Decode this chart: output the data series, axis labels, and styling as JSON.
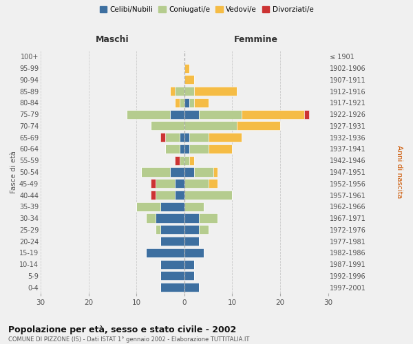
{
  "age_groups": [
    "0-4",
    "5-9",
    "10-14",
    "15-19",
    "20-24",
    "25-29",
    "30-34",
    "35-39",
    "40-44",
    "45-49",
    "50-54",
    "55-59",
    "60-64",
    "65-69",
    "70-74",
    "75-79",
    "80-84",
    "85-89",
    "90-94",
    "95-99",
    "100+"
  ],
  "birth_years": [
    "1997-2001",
    "1992-1996",
    "1987-1991",
    "1982-1986",
    "1977-1981",
    "1972-1976",
    "1967-1971",
    "1962-1966",
    "1957-1961",
    "1952-1956",
    "1947-1951",
    "1942-1946",
    "1937-1941",
    "1932-1936",
    "1927-1931",
    "1922-1926",
    "1917-1921",
    "1912-1916",
    "1907-1911",
    "1902-1906",
    "≤ 1901"
  ],
  "males": {
    "celibi": [
      5,
      5,
      5,
      8,
      5,
      5,
      6,
      5,
      2,
      2,
      3,
      0,
      1,
      1,
      0,
      3,
      0,
      0,
      0,
      0,
      0
    ],
    "coniugati": [
      0,
      0,
      0,
      0,
      0,
      1,
      2,
      5,
      4,
      4,
      6,
      1,
      3,
      3,
      7,
      9,
      1,
      2,
      0,
      0,
      0
    ],
    "vedovi": [
      0,
      0,
      0,
      0,
      0,
      0,
      0,
      0,
      0,
      0,
      0,
      0,
      0,
      0,
      0,
      0,
      1,
      1,
      0,
      0,
      0
    ],
    "divorziati": [
      0,
      0,
      0,
      0,
      0,
      0,
      0,
      0,
      1,
      1,
      0,
      1,
      0,
      1,
      0,
      0,
      0,
      0,
      0,
      0,
      0
    ]
  },
  "females": {
    "nubili": [
      3,
      2,
      2,
      4,
      3,
      3,
      3,
      0,
      0,
      0,
      2,
      0,
      1,
      1,
      0,
      3,
      1,
      0,
      0,
      0,
      0
    ],
    "coniugate": [
      0,
      0,
      0,
      0,
      0,
      2,
      4,
      4,
      10,
      5,
      4,
      1,
      4,
      4,
      11,
      9,
      1,
      2,
      0,
      0,
      0
    ],
    "vedove": [
      0,
      0,
      0,
      0,
      0,
      0,
      0,
      0,
      0,
      2,
      1,
      1,
      5,
      7,
      9,
      13,
      3,
      9,
      2,
      1,
      0
    ],
    "divorziate": [
      0,
      0,
      0,
      0,
      0,
      0,
      0,
      0,
      0,
      0,
      0,
      0,
      0,
      0,
      0,
      1,
      0,
      0,
      0,
      0,
      0
    ]
  },
  "colors": {
    "celibi": "#3d6fa0",
    "coniugati": "#b5cc8e",
    "vedovi": "#f5bc45",
    "divorziati": "#cc3333"
  },
  "title": "Popolazione per età, sesso e stato civile - 2002",
  "subtitle": "COMUNE DI PIZZONE (IS) - Dati ISTAT 1° gennaio 2002 - Elaborazione TUTTITALIA.IT",
  "xlabel_left": "Maschi",
  "xlabel_right": "Femmine",
  "ylabel_left": "Fasce di età",
  "ylabel_right": "Anni di nascita",
  "xlim": 30,
  "background_color": "#f0f0f0",
  "legend_labels": [
    "Celibi/Nubili",
    "Coniugati/e",
    "Vedovi/e",
    "Divorziati/e"
  ]
}
